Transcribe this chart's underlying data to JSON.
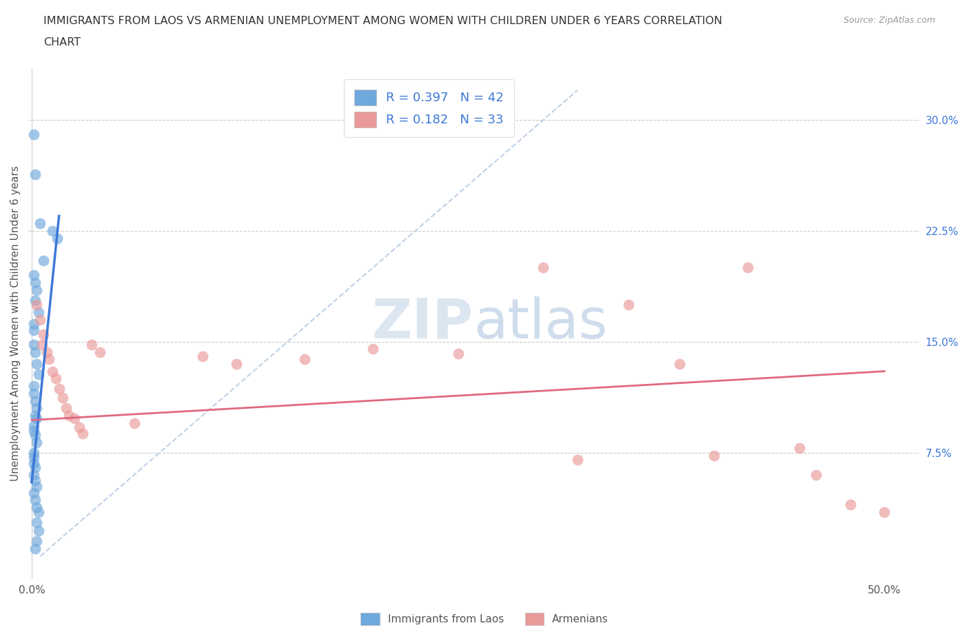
{
  "title_line1": "IMMIGRANTS FROM LAOS VS ARMENIAN UNEMPLOYMENT AMONG WOMEN WITH CHILDREN UNDER 6 YEARS CORRELATION",
  "title_line2": "CHART",
  "source": "Source: ZipAtlas.com",
  "ylabel": "Unemployment Among Women with Children Under 6 years",
  "watermark": "ZIPatlas",
  "xmin": -0.002,
  "xmax": 0.52,
  "ymin": -0.01,
  "ymax": 0.335,
  "xticks": [
    0.0,
    0.1,
    0.2,
    0.3,
    0.4,
    0.5
  ],
  "xticklabels": [
    "0.0%",
    "",
    "",
    "",
    "",
    "50.0%"
  ],
  "yticks_right": [
    0.075,
    0.15,
    0.225,
    0.3
  ],
  "yticklabels_right": [
    "7.5%",
    "15.0%",
    "22.5%",
    "30.0%"
  ],
  "laos_color": "#6fa8dc",
  "armenian_color": "#ea9999",
  "laos_line_color": "#3c78d8",
  "armenian_line_color": "#e06880",
  "diagonal_color": "#b8cce4",
  "R_laos": 0.397,
  "N_laos": 42,
  "R_armenian": 0.182,
  "N_armenian": 33,
  "laos_scatter": [
    [
      0.001,
      0.29
    ],
    [
      0.002,
      0.263
    ],
    [
      0.005,
      0.23
    ],
    [
      0.007,
      0.205
    ],
    [
      0.001,
      0.195
    ],
    [
      0.002,
      0.19
    ],
    [
      0.003,
      0.185
    ],
    [
      0.002,
      0.178
    ],
    [
      0.004,
      0.17
    ],
    [
      0.001,
      0.162
    ],
    [
      0.001,
      0.158
    ],
    [
      0.012,
      0.225
    ],
    [
      0.015,
      0.22
    ],
    [
      0.001,
      0.148
    ],
    [
      0.002,
      0.143
    ],
    [
      0.003,
      0.135
    ],
    [
      0.004,
      0.128
    ],
    [
      0.001,
      0.12
    ],
    [
      0.001,
      0.115
    ],
    [
      0.002,
      0.11
    ],
    [
      0.003,
      0.105
    ],
    [
      0.002,
      0.1
    ],
    [
      0.003,
      0.098
    ],
    [
      0.001,
      0.093
    ],
    [
      0.001,
      0.09
    ],
    [
      0.002,
      0.087
    ],
    [
      0.003,
      0.082
    ],
    [
      0.001,
      0.075
    ],
    [
      0.001,
      0.072
    ],
    [
      0.001,
      0.068
    ],
    [
      0.002,
      0.065
    ],
    [
      0.001,
      0.06
    ],
    [
      0.002,
      0.056
    ],
    [
      0.003,
      0.052
    ],
    [
      0.001,
      0.048
    ],
    [
      0.002,
      0.043
    ],
    [
      0.003,
      0.038
    ],
    [
      0.004,
      0.035
    ],
    [
      0.003,
      0.028
    ],
    [
      0.004,
      0.022
    ],
    [
      0.003,
      0.015
    ],
    [
      0.002,
      0.01
    ]
  ],
  "armenian_scatter": [
    [
      0.003,
      0.175
    ],
    [
      0.005,
      0.165
    ],
    [
      0.007,
      0.155
    ],
    [
      0.006,
      0.148
    ],
    [
      0.009,
      0.143
    ],
    [
      0.01,
      0.138
    ],
    [
      0.012,
      0.13
    ],
    [
      0.014,
      0.125
    ],
    [
      0.016,
      0.118
    ],
    [
      0.018,
      0.112
    ],
    [
      0.02,
      0.105
    ],
    [
      0.022,
      0.1
    ],
    [
      0.025,
      0.098
    ],
    [
      0.028,
      0.092
    ],
    [
      0.03,
      0.088
    ],
    [
      0.035,
      0.148
    ],
    [
      0.04,
      0.143
    ],
    [
      0.06,
      0.095
    ],
    [
      0.1,
      0.14
    ],
    [
      0.12,
      0.135
    ],
    [
      0.16,
      0.138
    ],
    [
      0.2,
      0.145
    ],
    [
      0.25,
      0.142
    ],
    [
      0.3,
      0.2
    ],
    [
      0.32,
      0.07
    ],
    [
      0.35,
      0.175
    ],
    [
      0.38,
      0.135
    ],
    [
      0.4,
      0.073
    ],
    [
      0.42,
      0.2
    ],
    [
      0.45,
      0.078
    ],
    [
      0.46,
      0.06
    ],
    [
      0.48,
      0.04
    ],
    [
      0.5,
      0.035
    ]
  ],
  "laos_line_x": [
    0.0,
    0.016
  ],
  "laos_line_y": [
    0.055,
    0.235
  ],
  "armenian_line_x": [
    0.0,
    0.5
  ],
  "armenian_line_y": [
    0.097,
    0.13
  ],
  "diag_line_x": [
    0.005,
    0.32
  ],
  "diag_line_y": [
    0.005,
    0.32
  ]
}
